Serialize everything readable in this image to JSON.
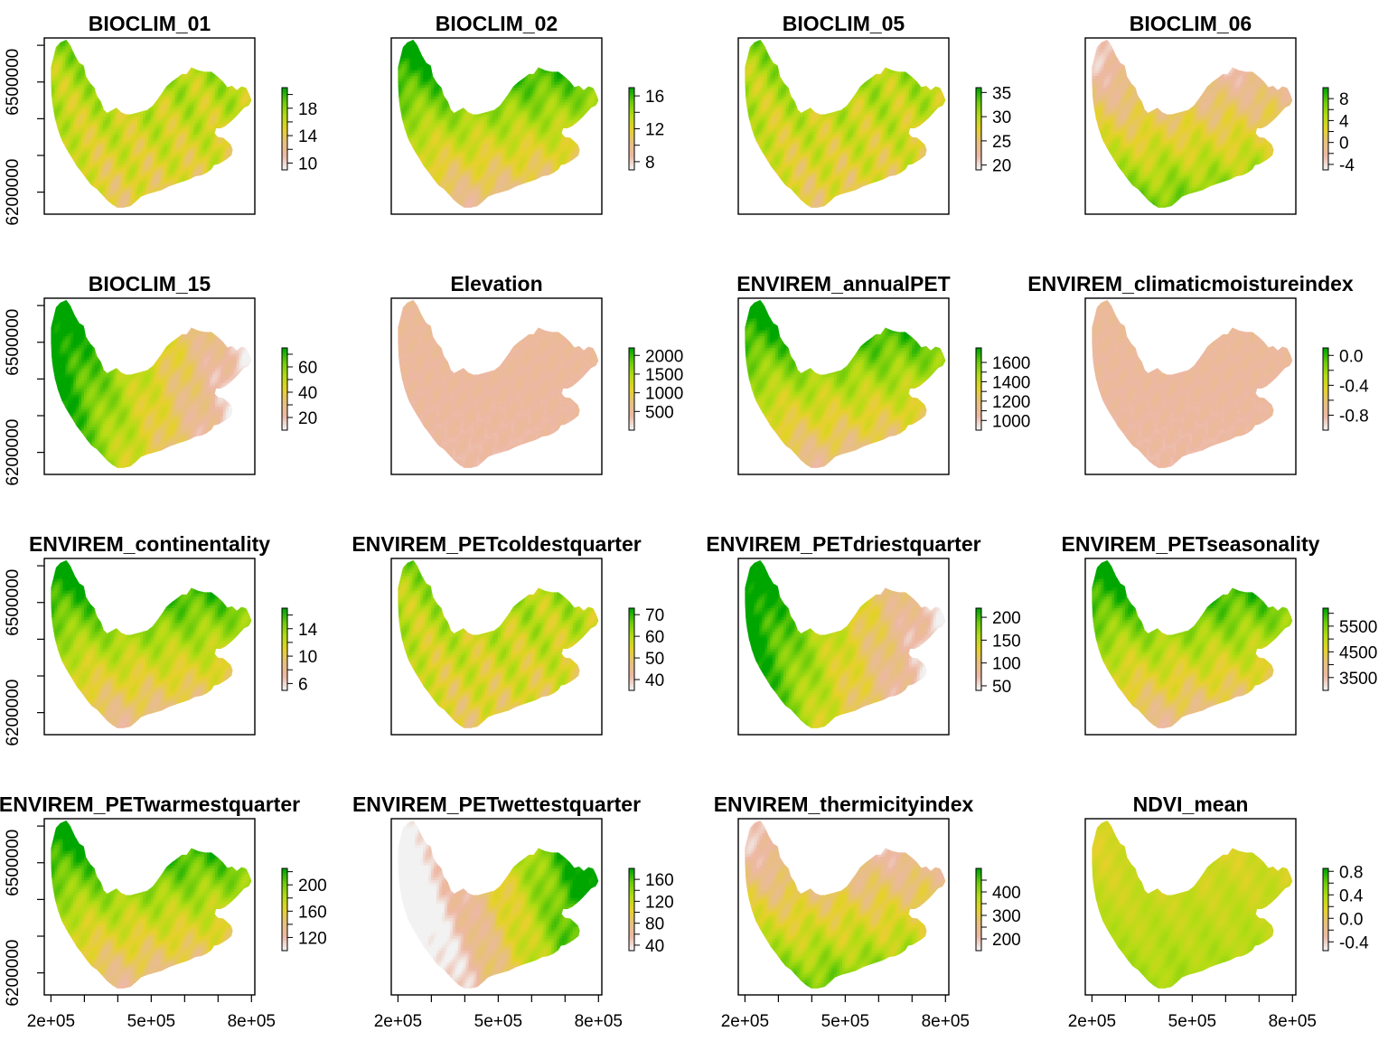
{
  "palette": [
    "#f2f2f2",
    "#edb8a4",
    "#e7c07e",
    "#e6d12a",
    "#b3dc14",
    "#6fcc0a",
    "#00a600"
  ],
  "x_axis": {
    "min": 180000,
    "max": 810000,
    "ticks": [
      200000,
      300000,
      400000,
      500000,
      600000,
      700000,
      800000
    ],
    "tick_labels": [
      "2e+05",
      "5e+05",
      "8e+05"
    ]
  },
  "y_axis": {
    "min": 6140000,
    "max": 6620000,
    "ticks": [
      6200000,
      6300000,
      6400000,
      6500000,
      6600000
    ],
    "tick_labels": [
      "6200000",
      "6500000"
    ]
  },
  "chart_data": [
    {
      "type": "heatmap",
      "title": "BIOCLIM_01",
      "legend_range": [
        9,
        21
      ],
      "legend_ticks": [
        10,
        12,
        14,
        16,
        18,
        20
      ],
      "legend_labels": [
        "10",
        "14",
        "18"
      ],
      "pattern": "mixed"
    },
    {
      "type": "heatmap",
      "title": "BIOCLIM_02",
      "legend_range": [
        7,
        17
      ],
      "legend_ticks": [
        8,
        10,
        12,
        14,
        16
      ],
      "legend_labels": [
        "8",
        "12",
        "16"
      ],
      "pattern": "north_high"
    },
    {
      "type": "heatmap",
      "title": "BIOCLIM_05",
      "legend_range": [
        19,
        36
      ],
      "legend_ticks": [
        20,
        25,
        30,
        35
      ],
      "legend_labels": [
        "20",
        "25",
        "30",
        "35"
      ],
      "pattern": "mixed"
    },
    {
      "type": "heatmap",
      "title": "BIOCLIM_06",
      "legend_range": [
        -5,
        10
      ],
      "legend_ticks": [
        -4,
        -2,
        0,
        2,
        4,
        6,
        8
      ],
      "legend_labels": [
        "-4",
        "0",
        "4",
        "8"
      ],
      "pattern": "south_high"
    },
    {
      "type": "heatmap",
      "title": "BIOCLIM_15",
      "legend_range": [
        10,
        75
      ],
      "legend_ticks": [
        20,
        30,
        40,
        50,
        60,
        70
      ],
      "legend_labels": [
        "20",
        "40",
        "60"
      ],
      "pattern": "west_high"
    },
    {
      "type": "heatmap",
      "title": "Elevation",
      "legend_range": [
        0,
        2200
      ],
      "legend_ticks": [
        500,
        1000,
        1500,
        2000
      ],
      "legend_labels": [
        "500",
        "1000",
        "1500",
        "2000"
      ],
      "pattern": "low"
    },
    {
      "type": "heatmap",
      "title": "ENVIREM_annualPET",
      "legend_range": [
        900,
        1750
      ],
      "legend_ticks": [
        1000,
        1100,
        1200,
        1300,
        1400,
        1500,
        1600
      ],
      "legend_labels": [
        "1000",
        "1200",
        "1400",
        "1600"
      ],
      "pattern": "north_high"
    },
    {
      "type": "heatmap",
      "title": "ENVIREM_climaticmoistureindex",
      "legend_range": [
        -1.0,
        0.1
      ],
      "legend_ticks": [
        -0.8,
        -0.6,
        -0.4,
        -0.2,
        0.0
      ],
      "legend_labels": [
        "-0.8",
        "-0.4",
        "0.0"
      ],
      "pattern": "low"
    },
    {
      "type": "heatmap",
      "title": "ENVIREM_continentality",
      "legend_range": [
        5,
        17
      ],
      "legend_ticks": [
        6,
        8,
        10,
        12,
        14,
        16
      ],
      "legend_labels": [
        "6",
        "10",
        "14"
      ],
      "pattern": "north_high"
    },
    {
      "type": "heatmap",
      "title": "ENVIREM_PETcoldestquarter",
      "legend_range": [
        35,
        73
      ],
      "legend_ticks": [
        40,
        50,
        60,
        70
      ],
      "legend_labels": [
        "40",
        "50",
        "60",
        "70"
      ],
      "pattern": "mixed"
    },
    {
      "type": "heatmap",
      "title": "ENVIREM_PETdriestquarter",
      "legend_range": [
        40,
        220
      ],
      "legend_ticks": [
        50,
        100,
        150,
        200
      ],
      "legend_labels": [
        "50",
        "100",
        "150",
        "200"
      ],
      "pattern": "west_high"
    },
    {
      "type": "heatmap",
      "title": "ENVIREM_PETseasonality",
      "legend_range": [
        3000,
        6200
      ],
      "legend_ticks": [
        3500,
        4000,
        4500,
        5000,
        5500,
        6000
      ],
      "legend_labels": [
        "3500",
        "4500",
        "5500"
      ],
      "pattern": "north_high"
    },
    {
      "type": "heatmap",
      "title": "ENVIREM_PETwarmestquarter",
      "legend_range": [
        100,
        225
      ],
      "legend_ticks": [
        120,
        140,
        160,
        180,
        200,
        220
      ],
      "legend_labels": [
        "120",
        "160",
        "200"
      ],
      "pattern": "north_high"
    },
    {
      "type": "heatmap",
      "title": "ENVIREM_PETwettestquarter",
      "legend_range": [
        30,
        180
      ],
      "legend_ticks": [
        40,
        60,
        80,
        100,
        120,
        140,
        160
      ],
      "legend_labels": [
        "40",
        "80",
        "120",
        "160"
      ],
      "pattern": "east_high"
    },
    {
      "type": "heatmap",
      "title": "ENVIREM_thermicityindex",
      "legend_range": [
        150,
        500
      ],
      "legend_ticks": [
        200,
        250,
        300,
        350,
        400,
        450
      ],
      "legend_labels": [
        "200",
        "300",
        "400"
      ],
      "pattern": "south_high"
    },
    {
      "type": "heatmap",
      "title": "NDVI_mean",
      "legend_range": [
        -0.55,
        0.85
      ],
      "legend_ticks": [
        -0.4,
        -0.2,
        0.0,
        0.2,
        0.4,
        0.6,
        0.8
      ],
      "legend_labels": [
        "-0.4",
        "0.0",
        "0.4",
        "0.8"
      ],
      "pattern": "ndvi"
    }
  ]
}
